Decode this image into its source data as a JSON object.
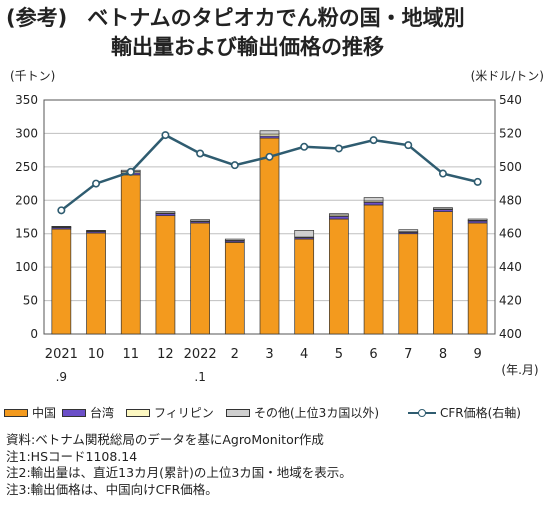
{
  "title": {
    "tag": "(参考)",
    "line1": "ベトナムのタピオカでん粉の国・地域別",
    "line2": "輸出量および輸出価格の推移"
  },
  "chart_data": {
    "type": "bar",
    "stacked": true,
    "categories": [
      [
        "2021",
        ".9"
      ],
      [
        "10",
        ""
      ],
      [
        "11",
        ""
      ],
      [
        "12",
        ""
      ],
      [
        "2022",
        ".1"
      ],
      [
        "2",
        ""
      ],
      [
        "3",
        ""
      ],
      [
        "4",
        ""
      ],
      [
        "5",
        ""
      ],
      [
        "6",
        ""
      ],
      [
        "7",
        ""
      ],
      [
        "8",
        ""
      ],
      [
        "9",
        ""
      ]
    ],
    "left_axis": {
      "label": "(千トン)",
      "min": 0,
      "max": 350,
      "ticks": [
        0,
        50,
        100,
        150,
        200,
        250,
        300,
        350
      ]
    },
    "right_axis": {
      "label": "(米ドル/トン)",
      "min": 400,
      "max": 540,
      "ticks": [
        400,
        420,
        440,
        460,
        480,
        500,
        520,
        540
      ]
    },
    "x_unit_label": "(年.月)",
    "series": [
      {
        "name": "中国",
        "color": "#f39a1e",
        "values": [
          157,
          151,
          238,
          177,
          166,
          137,
          293,
          142,
          172,
          193,
          150,
          183,
          166
        ]
      },
      {
        "name": "台湾",
        "color": "#6b4fc8",
        "values": [
          2,
          2,
          3,
          3,
          2,
          2,
          3,
          2,
          4,
          4,
          2,
          3,
          3
        ]
      },
      {
        "name": "フィリピン",
        "color": "#fdf8c2",
        "values": [
          1,
          1,
          2,
          1,
          1,
          1,
          3,
          1,
          2,
          2,
          1,
          1,
          1
        ]
      },
      {
        "name": "その他(上位3カ国以外)",
        "color": "#cfcfcf",
        "values": [
          1,
          1,
          2,
          2,
          2,
          2,
          5,
          10,
          2,
          5,
          3,
          2,
          2
        ]
      }
    ],
    "line_series": {
      "name": "CFR価格(右軸)",
      "color": "#2f5c70",
      "values": [
        474,
        490,
        497,
        519,
        508,
        501,
        506,
        512,
        511,
        516,
        513,
        496,
        491
      ]
    },
    "grid": true
  },
  "notes": [
    "資料:ベトナム関税総局のデータを基にAgroMonitor作成",
    "注1:HSコード1108.14",
    "注2:輸出量は、直近13カ月(累計)の上位3カ国・地域を表示。",
    "注3:輸出価格は、中国向けCFR価格。"
  ]
}
